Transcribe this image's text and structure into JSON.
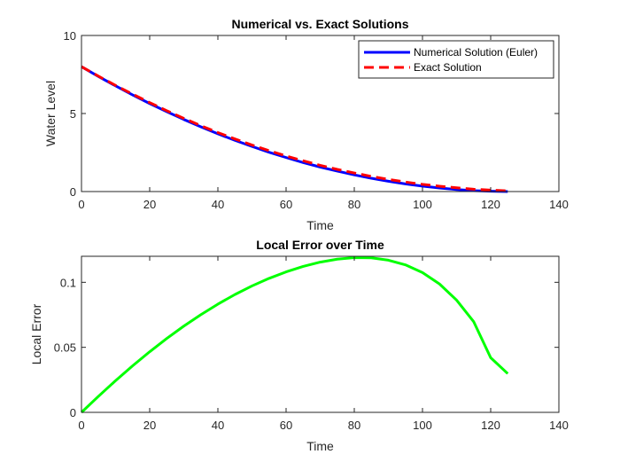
{
  "chart_data": [
    {
      "type": "line",
      "title": "Numerical vs. Exact Solutions",
      "xlabel": "Time",
      "ylabel": "Water Level",
      "xlim": [
        0,
        140
      ],
      "ylim": [
        0,
        10
      ],
      "xticks": [
        "0",
        "20",
        "40",
        "60",
        "80",
        "100",
        "120",
        "140"
      ],
      "yticks": [
        "0",
        "5",
        "10"
      ],
      "grid": false,
      "legend_position": "top-right",
      "x": [
        0,
        5,
        10,
        15,
        20,
        25,
        30,
        35,
        40,
        45,
        50,
        55,
        60,
        65,
        70,
        75,
        80,
        85,
        90,
        95,
        100,
        105,
        110,
        115,
        120,
        125
      ],
      "series": [
        {
          "name": "Numerical Solution (Euler)",
          "color": "#0000ff",
          "style": "solid",
          "values": [
            8.0,
            7.37,
            6.77,
            6.19,
            5.64,
            5.12,
            4.62,
            4.15,
            3.7,
            3.28,
            2.89,
            2.52,
            2.18,
            1.86,
            1.57,
            1.31,
            1.07,
            0.85,
            0.66,
            0.49,
            0.35,
            0.23,
            0.13,
            0.06,
            0.02,
            0.0
          ]
        },
        {
          "name": "Exact Solution",
          "color": "#ff0000",
          "style": "dashed",
          "values": [
            8.0,
            7.39,
            6.8,
            6.24,
            5.7,
            5.18,
            4.69,
            4.22,
            3.78,
            3.37,
            2.98,
            2.62,
            2.28,
            1.97,
            1.68,
            1.42,
            1.19,
            0.97,
            0.78,
            0.61,
            0.46,
            0.34,
            0.24,
            0.15,
            0.09,
            0.04
          ]
        }
      ]
    },
    {
      "type": "line",
      "title": "Local Error over Time",
      "xlabel": "Time",
      "ylabel": "Local Error",
      "xlim": [
        0,
        140
      ],
      "ylim": [
        0,
        0.12
      ],
      "xticks": [
        "0",
        "20",
        "40",
        "60",
        "80",
        "100",
        "120",
        "140"
      ],
      "yticks": [
        "0",
        "0.05",
        "0.1"
      ],
      "grid": false,
      "x": [
        0,
        5,
        10,
        15,
        20,
        25,
        30,
        35,
        40,
        45,
        50,
        55,
        60,
        65,
        70,
        75,
        80,
        85,
        90,
        95,
        100,
        105,
        110,
        115,
        120,
        125
      ],
      "series": [
        {
          "name": "",
          "color": "#00ff00",
          "style": "solid",
          "values": [
            0.0,
            0.0124,
            0.0244,
            0.0358,
            0.0466,
            0.0568,
            0.0663,
            0.0751,
            0.0832,
            0.0906,
            0.0972,
            0.103,
            0.108,
            0.1122,
            0.1155,
            0.1178,
            0.119,
            0.1188,
            0.117,
            0.1134,
            0.1075,
            0.0987,
            0.0863,
            0.0698,
            0.042,
            0.0298
          ]
        }
      ]
    }
  ]
}
